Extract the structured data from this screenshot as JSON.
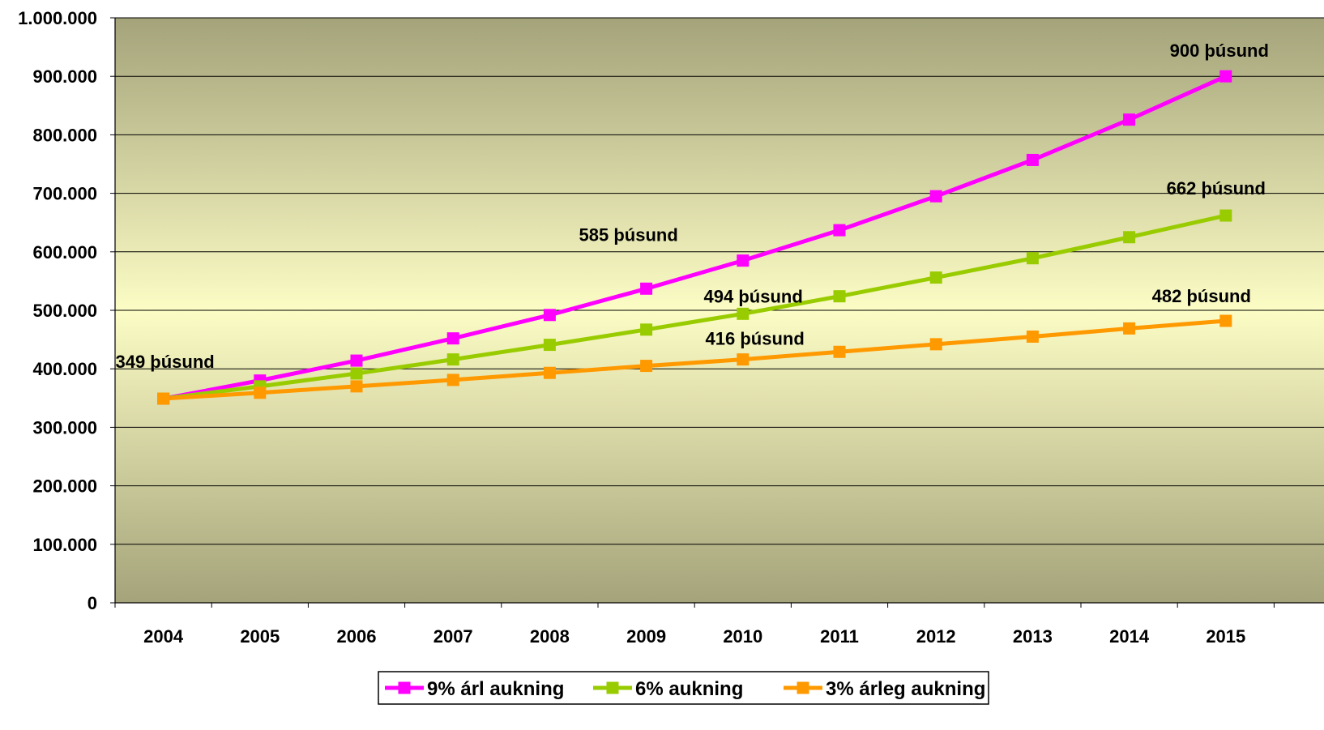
{
  "chart_data": {
    "type": "line",
    "title": "",
    "xlabel": "",
    "ylabel": "",
    "categories": [
      "2004",
      "2005",
      "2006",
      "2007",
      "2008",
      "2009",
      "2010",
      "2011",
      "2012",
      "2013",
      "2014",
      "2015"
    ],
    "y_ticks": [
      "0",
      "100.000",
      "200.000",
      "300.000",
      "400.000",
      "500.000",
      "600.000",
      "700.000",
      "800.000",
      "900.000",
      "1.000.000"
    ],
    "ylim": [
      0,
      1000000
    ],
    "grid": "horizontal",
    "legend_position": "bottom",
    "series": [
      {
        "name": "9% árl aukning",
        "color": "#ff00ff",
        "values": [
          349000,
          380000,
          414000,
          452000,
          492000,
          537000,
          585000,
          637000,
          695000,
          757000,
          826000,
          900000
        ]
      },
      {
        "name": "6% aukning",
        "color": "#99cc00",
        "values": [
          349000,
          370000,
          392000,
          416000,
          441000,
          467000,
          494000,
          524000,
          556000,
          589000,
          625000,
          662000
        ]
      },
      {
        "name": "3% árleg aukning",
        "color": "#ff9900",
        "values": [
          349000,
          359000,
          370000,
          381000,
          393000,
          405000,
          416000,
          429000,
          442000,
          455000,
          469000,
          482000
        ]
      }
    ],
    "annotations": [
      {
        "text": "349 þúsund",
        "series": 2,
        "index": 0
      },
      {
        "text": "585 þúsund",
        "series": 0,
        "index": 6
      },
      {
        "text": "494 þúsund",
        "series": 1,
        "index": 6
      },
      {
        "text": "416 þúsund",
        "series": 2,
        "index": 6
      },
      {
        "text": "900 þúsund",
        "series": 0,
        "index": 11
      },
      {
        "text": "662 þúsund",
        "series": 1,
        "index": 11
      },
      {
        "text": "482 þúsund",
        "series": 2,
        "index": 11
      }
    ],
    "plot_background": {
      "edge": "#a4a37a",
      "center": "#fcfcc5"
    }
  }
}
